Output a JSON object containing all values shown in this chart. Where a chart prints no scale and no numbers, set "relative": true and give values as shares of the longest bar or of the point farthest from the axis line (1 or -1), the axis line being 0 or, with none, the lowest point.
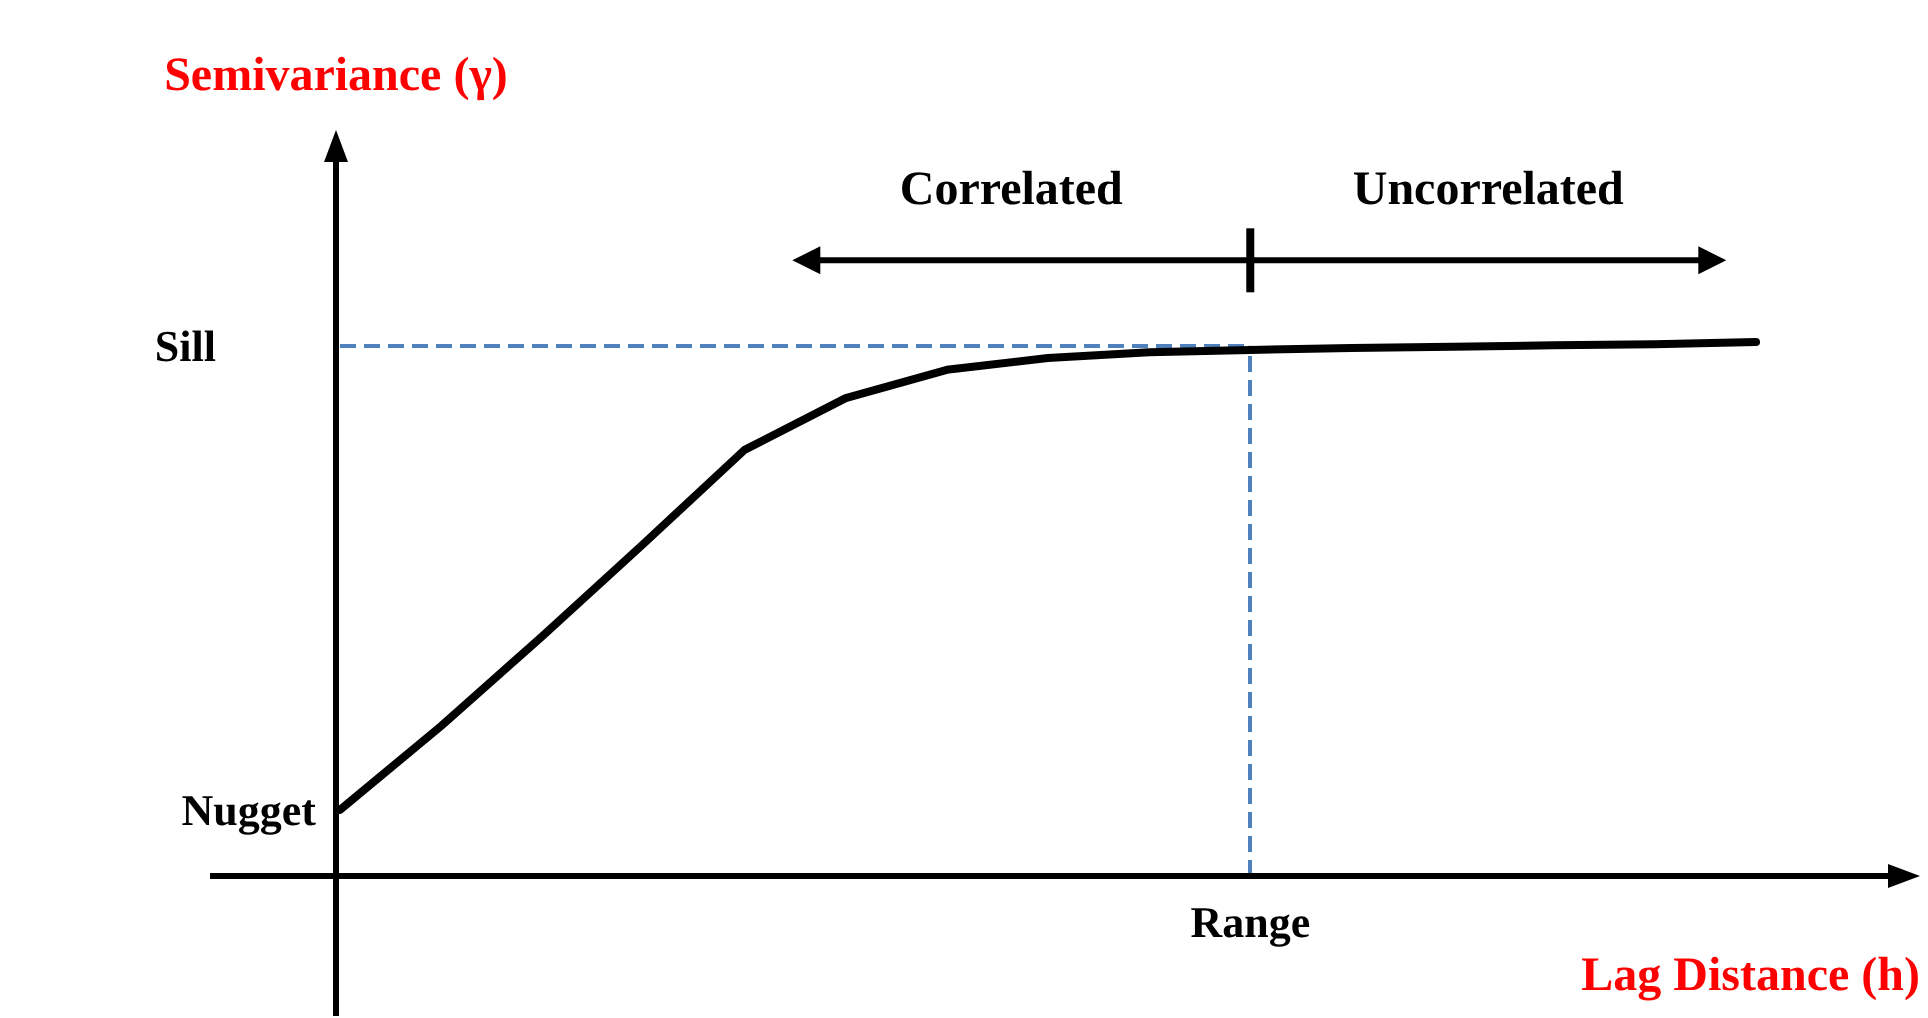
{
  "chart_data": {
    "type": "line",
    "relative": true,
    "xlabel": "Lag Distance (h)",
    "ylabel": "Semivariance (γ)",
    "categories": [
      null,
      null,
      null,
      null,
      null,
      null,
      null,
      null,
      null,
      null,
      null,
      null,
      null,
      null,
      null
    ],
    "series": [
      {
        "color": "#000000",
        "values": [
          0.124,
          0.281,
          0.449,
          0.622,
          0.798,
          0.895,
          0.948,
          0.97,
          0.981,
          0.985,
          0.989,
          0.991,
          0.994,
          0.996,
          1
        ]
      }
    ],
    "tick_labels": false,
    "grid": false,
    "marker": "none",
    "line_style": "solid",
    "ref_lines": [
      {
        "axis": "y",
        "value": 0.993,
        "label": "Sill",
        "color": "#4f81bd",
        "line_style": "dashed"
      },
      {
        "axis": "x",
        "label": "Range",
        "color": "#4f81bd",
        "line_style": "dashed"
      }
    ],
    "annotations": [
      "Nugget",
      "Correlated",
      "Uncorrelated"
    ]
  }
}
